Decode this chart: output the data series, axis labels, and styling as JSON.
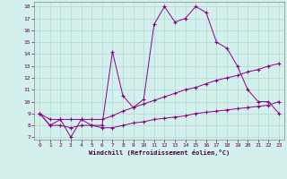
{
  "xlabel": "Windchill (Refroidissement éolien,°C)",
  "bg_color": "#d4f0ec",
  "line_color": "#880088",
  "grid_color": "#b0d8d4",
  "xlim": [
    -0.5,
    23.5
  ],
  "ylim": [
    6.8,
    18.4
  ],
  "xticks": [
    0,
    1,
    2,
    3,
    4,
    5,
    6,
    7,
    8,
    9,
    10,
    11,
    12,
    13,
    14,
    15,
    16,
    17,
    18,
    19,
    20,
    21,
    22,
    23
  ],
  "yticks": [
    7,
    8,
    9,
    10,
    11,
    12,
    13,
    14,
    15,
    16,
    17,
    18
  ],
  "line1_x": [
    0,
    1,
    2,
    3,
    4,
    5,
    6,
    7,
    8,
    9,
    10,
    11,
    12,
    13,
    14,
    15,
    16,
    17,
    18,
    19,
    20,
    21,
    22,
    23
  ],
  "line1_y": [
    9.0,
    8.0,
    8.5,
    7.0,
    8.5,
    8.0,
    8.0,
    14.2,
    10.5,
    9.5,
    10.2,
    16.5,
    18.0,
    16.7,
    17.0,
    18.0,
    17.5,
    15.0,
    14.5,
    13.0,
    11.0,
    10.0,
    10.0,
    9.0
  ],
  "line2_x": [
    0,
    1,
    2,
    3,
    4,
    5,
    6,
    7,
    8,
    9,
    10,
    11,
    12,
    13,
    14,
    15,
    16,
    17,
    18,
    19,
    20,
    21,
    22,
    23
  ],
  "line2_y": [
    9.0,
    8.5,
    8.5,
    8.5,
    8.5,
    8.5,
    8.5,
    8.8,
    9.2,
    9.5,
    9.8,
    10.1,
    10.4,
    10.7,
    11.0,
    11.2,
    11.5,
    11.8,
    12.0,
    12.2,
    12.5,
    12.7,
    13.0,
    13.2
  ],
  "line3_x": [
    0,
    1,
    2,
    3,
    4,
    5,
    6,
    7,
    8,
    9,
    10,
    11,
    12,
    13,
    14,
    15,
    16,
    17,
    18,
    19,
    20,
    21,
    22,
    23
  ],
  "line3_y": [
    9.0,
    8.0,
    8.0,
    7.8,
    8.0,
    8.0,
    7.8,
    7.8,
    8.0,
    8.2,
    8.3,
    8.5,
    8.6,
    8.7,
    8.8,
    9.0,
    9.1,
    9.2,
    9.3,
    9.4,
    9.5,
    9.6,
    9.7,
    10.0
  ]
}
